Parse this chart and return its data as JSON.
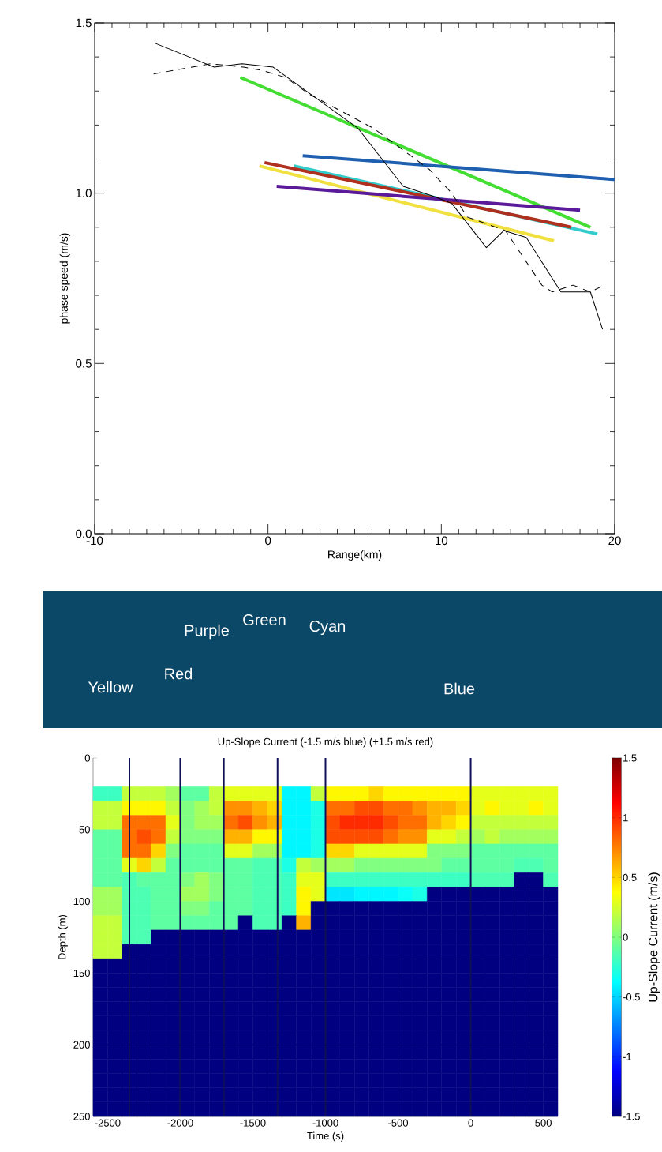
{
  "chart_data": [
    {
      "type": "line",
      "xlabel": "Range(km)",
      "ylabel": "phase speed (m/s)",
      "xlim": [
        -10,
        20
      ],
      "ylim": [
        0,
        1.5
      ],
      "xticks": [
        -10,
        0,
        10,
        20
      ],
      "yticks": [
        {
          "value": 0,
          "label": "0.0"
        },
        {
          "value": 0.5,
          "label": "0.5"
        },
        {
          "value": 1,
          "label": "1.0"
        },
        {
          "value": 1.5,
          "label": "1.5"
        }
      ],
      "marker": "none",
      "series": [
        {
          "color": "#44dd33",
          "line_style": "solid",
          "x": [
            -1.6,
            18.6
          ],
          "values": [
            1.34,
            0.9
          ]
        },
        {
          "color": "#1f5fb0",
          "line_style": "solid",
          "x": [
            2.0,
            20
          ],
          "values": [
            1.11,
            1.04
          ]
        },
        {
          "color": "#33cccc",
          "line_style": "solid",
          "x": [
            1.5,
            19.0
          ],
          "values": [
            1.08,
            0.88
          ]
        },
        {
          "color": "#f0e040",
          "line_style": "solid",
          "x": [
            -0.5,
            16.5
          ],
          "values": [
            1.08,
            0.86
          ]
        },
        {
          "color": "#b03020",
          "line_style": "solid",
          "x": [
            -0.2,
            17.5
          ],
          "values": [
            1.09,
            0.9
          ]
        },
        {
          "color": "#5a1a9a",
          "line_style": "solid",
          "x": [
            0.5,
            18.0
          ],
          "values": [
            1.02,
            0.95
          ]
        },
        {
          "color": "#000000",
          "line_style": "solid",
          "x": [
            -6.5,
            -3.1,
            -1.5,
            0.3,
            5.2,
            7.8,
            9.6,
            10.6,
            12.6,
            13.6,
            14.9,
            16.9,
            18.6,
            19.3
          ],
          "values": [
            1.44,
            1.37,
            1.38,
            1.37,
            1.19,
            1.02,
            0.99,
            0.97,
            0.84,
            0.89,
            0.87,
            0.71,
            0.71,
            0.6
          ]
        },
        {
          "color": "#000000",
          "line_style": "dashed",
          "x": [
            -6.6,
            -3.3,
            -1.4,
            -0.3,
            1.0,
            2.4,
            6.1,
            9.3,
            10.6,
            11.5,
            13.7,
            15.8,
            16.4,
            17.6,
            18.6,
            19.4
          ],
          "values": [
            1.35,
            1.38,
            1.37,
            1.36,
            1.34,
            1.29,
            1.19,
            1.07,
            1.0,
            0.93,
            0.89,
            0.73,
            0.71,
            0.73,
            0.71,
            0.73
          ]
        }
      ]
    },
    {
      "type": "heatmap",
      "title": "Up-Slope Current (-1.5 m/s blue) (+1.5 m/s red)",
      "xlabel": "Time (s)",
      "ylabel": "Depth (m)",
      "clabel": "Up-Slope Current (m/s)",
      "xlim": [
        -2600,
        600
      ],
      "ylim": [
        250,
        0
      ],
      "xticks": [
        -2500,
        -2000,
        -1500,
        -1000,
        -500,
        0,
        500
      ],
      "yticks": [
        0,
        50,
        100,
        150,
        200,
        250
      ],
      "clim": [
        -1.5,
        1.5
      ],
      "cticks": [
        -1.5,
        -1,
        -0.5,
        0,
        0.5,
        1,
        1.5
      ],
      "ref_lines": [
        {
          "axis": "x",
          "value": -2350,
          "color": "#10105a"
        },
        {
          "axis": "x",
          "value": -2000,
          "color": "#10105a"
        },
        {
          "axis": "x",
          "value": -1700,
          "color": "#10105a"
        },
        {
          "axis": "x",
          "value": -1330,
          "color": "#10105a"
        },
        {
          "axis": "x",
          "value": -1000,
          "color": "#10105a"
        },
        {
          "axis": "x",
          "value": 0,
          "color": "#10105a"
        }
      ],
      "annotations": [
        "Yellow",
        "Red",
        "Purple",
        "Green",
        "Cyan",
        "Blue"
      ],
      "x": [
        -2550,
        -2450,
        -2350,
        -2250,
        -2150,
        -2050,
        -1950,
        -1850,
        -1750,
        -1650,
        -1550,
        -1450,
        -1350,
        -1250,
        -1150,
        -1050,
        -950,
        -850,
        -750,
        -650,
        -550,
        -450,
        -350,
        -250,
        -150,
        -50,
        50,
        150,
        250,
        350,
        450,
        550
      ],
      "y": [
        25,
        35,
        45,
        55,
        65,
        75,
        85,
        95,
        105,
        115,
        125,
        135,
        145,
        155,
        165,
        175,
        185,
        195,
        205,
        215,
        225,
        235,
        245
      ],
      "cells": [
        [
          -0.2,
          -0.2,
          0.2,
          0.2,
          0.2,
          0.1,
          -0.1,
          -0.1,
          0.2,
          0.3,
          0.3,
          0.3,
          0.3,
          -0.4,
          -0.4,
          0.2,
          0.4,
          0.4,
          0.4,
          0.5,
          0.4,
          0.4,
          0.4,
          0.4,
          0.4,
          0.4,
          0.3,
          0.3,
          0.3,
          0.3,
          0.3,
          0.3
        ],
        [
          0.2,
          0.2,
          0.4,
          0.4,
          0.4,
          0.2,
          0.0,
          0.1,
          0.2,
          0.7,
          0.7,
          0.6,
          0.5,
          -0.4,
          -0.4,
          -0.3,
          0.8,
          0.8,
          0.9,
          0.9,
          0.8,
          0.8,
          0.7,
          0.6,
          0.6,
          0.5,
          0.3,
          0.4,
          0.3,
          0.3,
          0.4,
          0.3
        ],
        [
          0.2,
          0.2,
          0.8,
          0.8,
          0.8,
          0.3,
          0.0,
          0.1,
          0.1,
          0.8,
          0.9,
          0.7,
          0.6,
          -0.4,
          -0.4,
          -0.3,
          0.9,
          1.0,
          1.0,
          1.0,
          0.9,
          0.8,
          0.8,
          0.6,
          0.5,
          0.4,
          0.2,
          0.2,
          0.2,
          0.2,
          0.2,
          0.2
        ],
        [
          -0.1,
          -0.1,
          0.8,
          0.9,
          0.8,
          0.2,
          0.0,
          0.0,
          0.0,
          0.6,
          0.6,
          0.4,
          0.4,
          -0.4,
          -0.4,
          -0.3,
          0.9,
          0.9,
          0.9,
          0.9,
          0.8,
          0.7,
          0.7,
          0.3,
          0.3,
          0.2,
          0.1,
          0.2,
          0.1,
          0.1,
          0.1,
          0.1
        ],
        [
          -0.1,
          -0.1,
          0.8,
          0.8,
          0.5,
          0.0,
          -0.1,
          -0.1,
          -0.1,
          0.3,
          0.3,
          0.1,
          0.1,
          -0.4,
          -0.4,
          -0.3,
          0.5,
          0.5,
          0.3,
          0.3,
          0.3,
          0.3,
          0.3,
          0.0,
          0.0,
          0.0,
          -0.1,
          -0.1,
          -0.1,
          -0.1,
          -0.1,
          -0.1
        ],
        [
          -0.1,
          -0.1,
          0.3,
          0.5,
          0.2,
          -0.1,
          -0.1,
          -0.1,
          -0.1,
          -0.1,
          -0.1,
          -0.15,
          -0.15,
          -0.3,
          0.2,
          0.1,
          0.1,
          0.1,
          0.0,
          0.0,
          0.0,
          0.0,
          0.0,
          0.0,
          -0.1,
          -0.1,
          -0.1,
          -0.1,
          -0.1,
          -0.15,
          -0.15,
          -0.1
        ],
        [
          -0.1,
          -0.1,
          -0.15,
          -0.1,
          -0.1,
          -0.1,
          0.0,
          0.1,
          0.0,
          -0.1,
          -0.1,
          -0.15,
          -0.15,
          -0.2,
          0.3,
          0.3,
          -0.2,
          -0.2,
          -0.2,
          -0.2,
          -0.2,
          -0.2,
          -0.2,
          -0.2,
          -0.2,
          -0.2,
          -0.15,
          -0.15,
          -0.15,
          -1.5,
          -1.5,
          -0.15
        ],
        [
          0.1,
          0.1,
          -0.15,
          -0.15,
          -0.1,
          -0.1,
          0.1,
          0.1,
          0.0,
          -0.1,
          -0.1,
          -0.15,
          -0.15,
          -0.2,
          0.4,
          0.3,
          -0.45,
          -0.45,
          -0.4,
          -0.4,
          -0.4,
          -0.35,
          -0.3,
          -1.5,
          -1.5,
          -1.5,
          -1.5,
          -1.5,
          -1.5,
          -1.5,
          -1.5,
          -1.5
        ],
        [
          0.1,
          0.1,
          -0.15,
          -0.15,
          -0.1,
          -0.1,
          0.0,
          0.0,
          -0.1,
          -0.1,
          -0.1,
          -0.15,
          -0.15,
          -0.2,
          0.4,
          -1.5,
          -1.5,
          -1.5,
          -1.5,
          -1.5,
          -1.5,
          -1.5,
          -1.5,
          -1.5,
          -1.5,
          -1.5,
          -1.5,
          -1.5,
          -1.5,
          -1.5,
          -1.5,
          -1.5
        ],
        [
          0.2,
          0.2,
          -0.15,
          -0.15,
          -0.1,
          -0.1,
          -0.1,
          -0.1,
          -0.1,
          -0.1,
          -1.5,
          -0.15,
          -0.15,
          -1.5,
          0.6,
          -1.5,
          -1.5,
          -1.5,
          -1.5,
          -1.5,
          -1.5,
          -1.5,
          -1.5,
          -1.5,
          -1.5,
          -1.5,
          -1.5,
          -1.5,
          -1.5,
          -1.5,
          -1.5,
          -1.5
        ],
        [
          0.2,
          0.2,
          -0.15,
          -0.15,
          -1.5,
          -1.5,
          -1.5,
          -1.5,
          -1.5,
          -1.5,
          -1.5,
          -1.5,
          -1.5,
          -1.5,
          -1.5,
          -1.5,
          -1.5,
          -1.5,
          -1.5,
          -1.5,
          -1.5,
          -1.5,
          -1.5,
          -1.5,
          -1.5,
          -1.5,
          -1.5,
          -1.5,
          -1.5,
          -1.5,
          -1.5,
          -1.5
        ],
        [
          0.2,
          0.2,
          -1.5,
          -1.5,
          -1.5,
          -1.5,
          -1.5,
          -1.5,
          -1.5,
          -1.5,
          -1.5,
          -1.5,
          -1.5,
          -1.5,
          -1.5,
          -1.5,
          -1.5,
          -1.5,
          -1.5,
          -1.5,
          -1.5,
          -1.5,
          -1.5,
          -1.5,
          -1.5,
          -1.5,
          -1.5,
          -1.5,
          -1.5,
          -1.5,
          -1.5,
          -1.5
        ],
        [
          -1.5,
          -1.5,
          -1.5,
          -1.5,
          -1.5,
          -1.5,
          -1.5,
          -1.5,
          -1.5,
          -1.5,
          -1.5,
          -1.5,
          -1.5,
          -1.5,
          -1.5,
          -1.5,
          -1.5,
          -1.5,
          -1.5,
          -1.5,
          -1.5,
          -1.5,
          -1.5,
          -1.5,
          -1.5,
          -1.5,
          -1.5,
          -1.5,
          -1.5,
          -1.5,
          -1.5,
          -1.5
        ],
        [
          -1.5,
          -1.5,
          -1.5,
          -1.5,
          -1.5,
          -1.5,
          -1.5,
          -1.5,
          -1.5,
          -1.5,
          -1.5,
          -1.5,
          -1.5,
          -1.5,
          -1.5,
          -1.5,
          -1.5,
          -1.5,
          -1.5,
          -1.5,
          -1.5,
          -1.5,
          -1.5,
          -1.5,
          -1.5,
          -1.5,
          -1.5,
          -1.5,
          -1.5,
          -1.5,
          -1.5,
          -1.5
        ],
        [
          -1.5,
          -1.5,
          -1.5,
          -1.5,
          -1.5,
          -1.5,
          -1.5,
          -1.5,
          -1.5,
          -1.5,
          -1.5,
          -1.5,
          -1.5,
          -1.5,
          -1.5,
          -1.5,
          -1.5,
          -1.5,
          -1.5,
          -1.5,
          -1.5,
          -1.5,
          -1.5,
          -1.5,
          -1.5,
          -1.5,
          -1.5,
          -1.5,
          -1.5,
          -1.5,
          -1.5,
          -1.5
        ],
        [
          -1.5,
          -1.5,
          -1.5,
          -1.5,
          -1.5,
          -1.5,
          -1.5,
          -1.5,
          -1.5,
          -1.5,
          -1.5,
          -1.5,
          -1.5,
          -1.5,
          -1.5,
          -1.5,
          -1.5,
          -1.5,
          -1.5,
          -1.5,
          -1.5,
          -1.5,
          -1.5,
          -1.5,
          -1.5,
          -1.5,
          -1.5,
          -1.5,
          -1.5,
          -1.5,
          -1.5,
          -1.5
        ],
        [
          -1.5,
          -1.5,
          -1.5,
          -1.5,
          -1.5,
          -1.5,
          -1.5,
          -1.5,
          -1.5,
          -1.5,
          -1.5,
          -1.5,
          -1.5,
          -1.5,
          -1.5,
          -1.5,
          -1.5,
          -1.5,
          -1.5,
          -1.5,
          -1.5,
          -1.5,
          -1.5,
          -1.5,
          -1.5,
          -1.5,
          -1.5,
          -1.5,
          -1.5,
          -1.5,
          -1.5,
          -1.5
        ],
        [
          -1.5,
          -1.5,
          -1.5,
          -1.5,
          -1.5,
          -1.5,
          -1.5,
          -1.5,
          -1.5,
          -1.5,
          -1.5,
          -1.5,
          -1.5,
          -1.5,
          -1.5,
          -1.5,
          -1.5,
          -1.5,
          -1.5,
          -1.5,
          -1.5,
          -1.5,
          -1.5,
          -1.5,
          -1.5,
          -1.5,
          -1.5,
          -1.5,
          -1.5,
          -1.5,
          -1.5,
          -1.5
        ],
        [
          -1.5,
          -1.5,
          -1.5,
          -1.5,
          -1.5,
          -1.5,
          -1.5,
          -1.5,
          -1.5,
          -1.5,
          -1.5,
          -1.5,
          -1.5,
          -1.5,
          -1.5,
          -1.5,
          -1.5,
          -1.5,
          -1.5,
          -1.5,
          -1.5,
          -1.5,
          -1.5,
          -1.5,
          -1.5,
          -1.5,
          -1.5,
          -1.5,
          -1.5,
          -1.5,
          -1.5,
          -1.5
        ],
        [
          -1.5,
          -1.5,
          -1.5,
          -1.5,
          -1.5,
          -1.5,
          -1.5,
          -1.5,
          -1.5,
          -1.5,
          -1.5,
          -1.5,
          -1.5,
          -1.5,
          -1.5,
          -1.5,
          -1.5,
          -1.5,
          -1.5,
          -1.5,
          -1.5,
          -1.5,
          -1.5,
          -1.5,
          -1.5,
          -1.5,
          -1.5,
          -1.5,
          -1.5,
          -1.5,
          -1.5,
          -1.5
        ],
        [
          -1.5,
          -1.5,
          -1.5,
          -1.5,
          -1.5,
          -1.5,
          -1.5,
          -1.5,
          -1.5,
          -1.5,
          -1.5,
          -1.5,
          -1.5,
          -1.5,
          -1.5,
          -1.5,
          -1.5,
          -1.5,
          -1.5,
          -1.5,
          -1.5,
          -1.5,
          -1.5,
          -1.5,
          -1.5,
          -1.5,
          -1.5,
          -1.5,
          -1.5,
          -1.5,
          -1.5,
          -1.5
        ],
        [
          -1.5,
          -1.5,
          -1.5,
          -1.5,
          -1.5,
          -1.5,
          -1.5,
          -1.5,
          -1.5,
          -1.5,
          -1.5,
          -1.5,
          -1.5,
          -1.5,
          -1.5,
          -1.5,
          -1.5,
          -1.5,
          -1.5,
          -1.5,
          -1.5,
          -1.5,
          -1.5,
          -1.5,
          -1.5,
          -1.5,
          -1.5,
          -1.5,
          -1.5,
          -1.5,
          -1.5,
          -1.5
        ],
        [
          -1.5,
          -1.5,
          -1.5,
          -1.5,
          -1.5,
          -1.5,
          -1.5,
          -1.5,
          -1.5,
          -1.5,
          -1.5,
          -1.5,
          -1.5,
          -1.5,
          -1.5,
          -1.5,
          -1.5,
          -1.5,
          -1.5,
          -1.5,
          -1.5,
          -1.5,
          -1.5,
          -1.5,
          -1.5,
          -1.5,
          -1.5,
          -1.5,
          -1.5,
          -1.5,
          -1.5,
          -1.5
        ]
      ]
    }
  ]
}
